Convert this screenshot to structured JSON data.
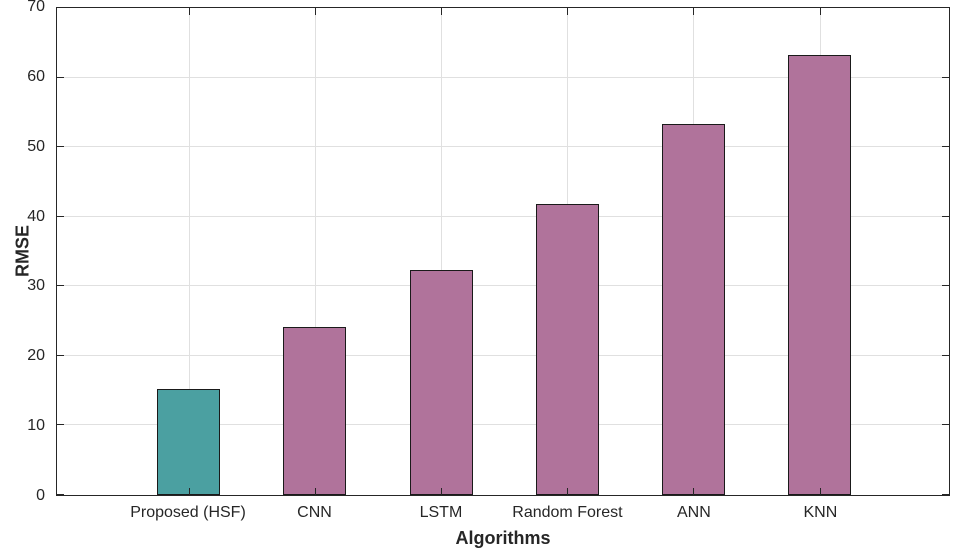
{
  "chart_data": {
    "type": "bar",
    "title": "",
    "xlabel": "Algorithms",
    "ylabel": "RMSE",
    "categories": [
      "Proposed (HSF)",
      "CNN",
      "LSTM",
      "Random Forest",
      "ANN",
      "KNN"
    ],
    "values": [
      15.2,
      24.2,
      32.3,
      41.9,
      53.4,
      63.2
    ],
    "bar_colors": [
      "#4ba0a1",
      "#b0739b",
      "#b0739b",
      "#b0739b",
      "#b0739b",
      "#b0739b"
    ],
    "bar_edge_color": "#1a1a1a",
    "ylim": [
      0,
      70
    ],
    "yticks": [
      0,
      10,
      20,
      30,
      40,
      50,
      60,
      70
    ],
    "grid": true,
    "legend": "none",
    "axis_color": "#262626",
    "grid_color": "#e0e0e0",
    "background_color": "#ffffff"
  }
}
